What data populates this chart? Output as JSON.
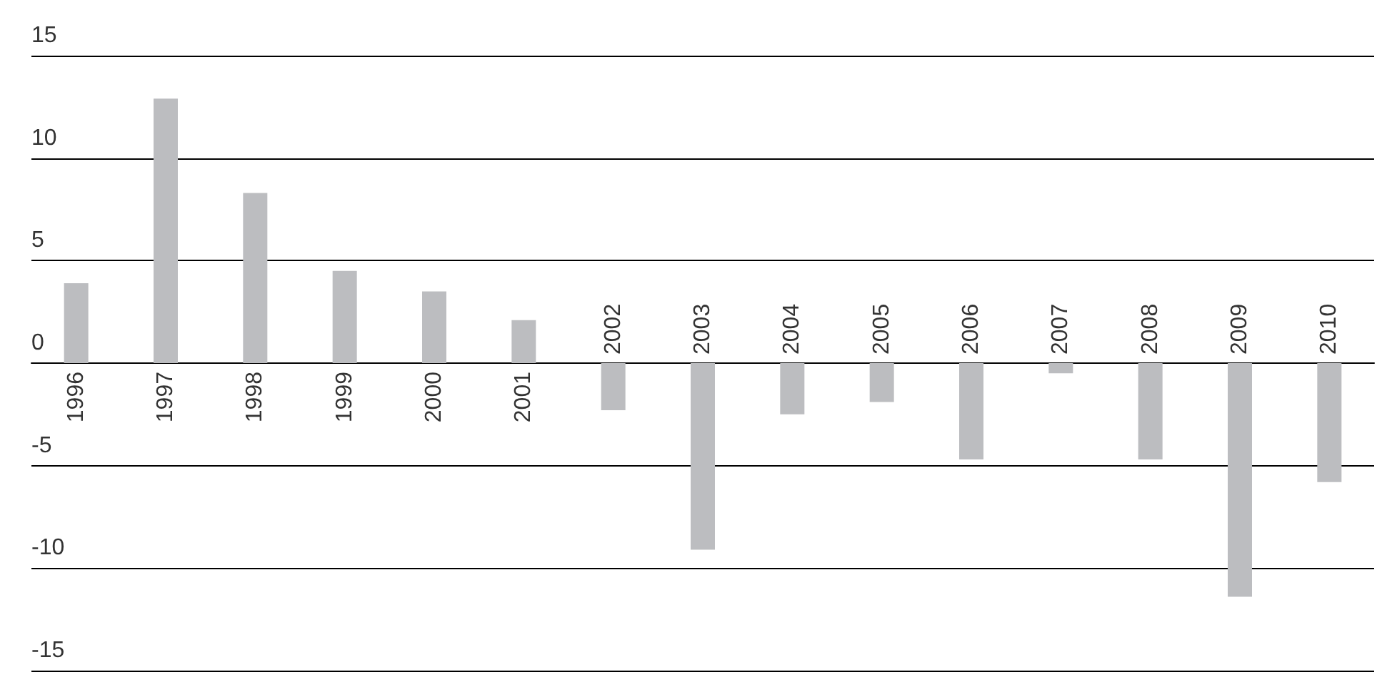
{
  "chart_data": {
    "type": "bar",
    "categories": [
      "1996",
      "1997",
      "1998",
      "1999",
      "2000",
      "2001",
      "2002",
      "2003",
      "2004",
      "2005",
      "2006",
      "2007",
      "2008",
      "2009",
      "2010"
    ],
    "values": [
      3.9,
      12.9,
      8.3,
      4.5,
      3.5,
      2.1,
      -2.3,
      -9.1,
      -2.5,
      -1.9,
      -4.7,
      -0.5,
      -4.7,
      -11.4,
      -5.8
    ],
    "color": "#bcbdc0",
    "ylim": [
      -15,
      15
    ],
    "yticks": [
      -15,
      -10,
      -5,
      0,
      5,
      10,
      15
    ],
    "grid": "y"
  }
}
